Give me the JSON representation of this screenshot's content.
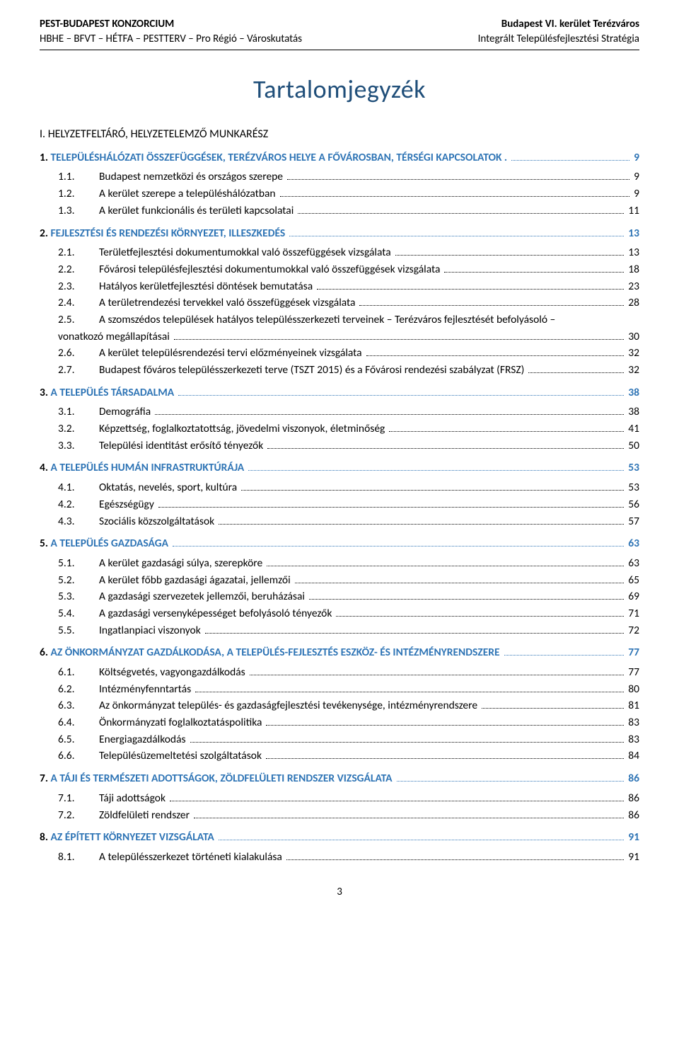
{
  "header": {
    "left_top": "PEST-BUDAPEST KONZORCIUM",
    "right_top": "Budapest VI. kerület Terézváros",
    "left_sub": "HBHE – BFVT – HÉTFA – PESTTERV – Pro Régió – Városkutatás",
    "right_sub": "Integrált Településfejlesztési Stratégia"
  },
  "title": "Tartalomjegyzék",
  "footer_page": "3",
  "toc": [
    {
      "level": "part",
      "label": "I. HELYZETFELTÁRÓ, HELYZETELEMZŐ MUNKARÉSZ"
    },
    {
      "level": "h1",
      "num": "1.",
      "label": "TELEPÜLÉSHÁLÓZATI ÖSSZEFÜGGÉSEK, TERÉZVÁROS HELYE A FŐVÁROSBAN, TÉRSÉGI KAPCSOLATOK .",
      "page": "9"
    },
    {
      "level": "h2",
      "num": "1.1.",
      "label": "Budapest nemzetközi és országos szerepe",
      "page": "9"
    },
    {
      "level": "h2",
      "num": "1.2.",
      "label": "A kerület szerepe a településhálózatban",
      "page": "9"
    },
    {
      "level": "h2",
      "num": "1.3.",
      "label": "A kerület funkcionális és területi kapcsolatai",
      "page": "11"
    },
    {
      "level": "h1",
      "num": "2.",
      "label": "FEJLESZTÉSI ÉS RENDEZÉSI KÖRNYEZET, ILLESZKEDÉS",
      "page": "13"
    },
    {
      "level": "h2",
      "num": "2.1.",
      "label": "Területfejlesztési dokumentumokkal való összefüggések vizsgálata",
      "page": "13"
    },
    {
      "level": "h2",
      "num": "2.2.",
      "label": "Fővárosi településfejlesztési dokumentumokkal való összefüggések vizsgálata",
      "page": "18"
    },
    {
      "level": "h2",
      "num": "2.3.",
      "label": "Hatályos kerületfejlesztési döntések bemutatása",
      "page": "23"
    },
    {
      "level": "h2",
      "num": "2.4.",
      "label": "A területrendezési tervekkel való összefüggések vizsgálata",
      "page": "28"
    },
    {
      "level": "wrap",
      "num": "2.5.",
      "label_line1": "A szomszédos települések hatályos településszerkezeti terveinek – Terézváros fejlesztését befolyásoló –",
      "label_line2": "vonatkozó megállapításai",
      "page": "30"
    },
    {
      "level": "h2",
      "num": "2.6.",
      "label": "A kerület településrendezési tervi előzményeinek vizsgálata",
      "page": "32"
    },
    {
      "level": "h2",
      "num": "2.7.",
      "label": "Budapest főváros településszerkezeti terve (TSZT 2015) és a Fővárosi rendezési szabályzat (FRSZ)",
      "page": "32"
    },
    {
      "level": "h1",
      "num": "3.",
      "label": "A TELEPÜLÉS TÁRSADALMA",
      "page": "38"
    },
    {
      "level": "h2",
      "num": "3.1.",
      "label": "Demográfia",
      "page": "38"
    },
    {
      "level": "h2",
      "num": "3.2.",
      "label": "Képzettség, foglalkoztatottság, jövedelmi viszonyok, életminőség",
      "page": "41"
    },
    {
      "level": "h2",
      "num": "3.3.",
      "label": "Települési identitást erősítő tényezők",
      "page": "50"
    },
    {
      "level": "h1",
      "num": "4.",
      "label": "A TELEPÜLÉS HUMÁN INFRASTRUKTÚRÁJA",
      "page": "53"
    },
    {
      "level": "h2",
      "num": "4.1.",
      "label": "Oktatás, nevelés, sport, kultúra",
      "page": "53"
    },
    {
      "level": "h2",
      "num": "4.2.",
      "label": "Egészségügy",
      "page": "56"
    },
    {
      "level": "h2",
      "num": "4.3.",
      "label": "Szociális közszolgáltatások",
      "page": "57"
    },
    {
      "level": "h1",
      "num": "5.",
      "label": "A TELEPÜLÉS GAZDASÁGA",
      "page": "63"
    },
    {
      "level": "h2",
      "num": "5.1.",
      "label": "A kerület gazdasági súlya, szerepköre",
      "page": "63"
    },
    {
      "level": "h2",
      "num": "5.2.",
      "label": "A kerület főbb gazdasági ágazatai, jellemzői",
      "page": "65"
    },
    {
      "level": "h2",
      "num": "5.3.",
      "label": "A gazdasági szervezetek jellemzői, beruházásai",
      "page": "69"
    },
    {
      "level": "h2",
      "num": "5.4.",
      "label": "A gazdasági versenyképességet befolyásoló tényezők",
      "page": "71"
    },
    {
      "level": "h2",
      "num": "5.5.",
      "label": "Ingatlanpiaci viszonyok",
      "page": "72"
    },
    {
      "level": "h1",
      "num": "6.",
      "label": "AZ ÖNKORMÁNYZAT GAZDÁLKODÁSA, A TELEPÜLÉS-FEJLESZTÉS ESZKÖZ- ÉS INTÉZMÉNYRENDSZERE",
      "page": "77"
    },
    {
      "level": "h2",
      "num": "6.1.",
      "label": "Költségvetés, vagyongazdálkodás",
      "page": "77"
    },
    {
      "level": "h2",
      "num": "6.2.",
      "label": "Intézményfenntartás",
      "page": "80"
    },
    {
      "level": "h2",
      "num": "6.3.",
      "label": "Az önkormányzat település- és gazdaságfejlesztési tevékenysége, intézményrendszere",
      "page": "81"
    },
    {
      "level": "h2",
      "num": "6.4.",
      "label": "Önkormányzati foglalkoztatáspolitika",
      "page": "83"
    },
    {
      "level": "h2",
      "num": "6.5.",
      "label": "Energiagazdálkodás",
      "page": "83"
    },
    {
      "level": "h2",
      "num": "6.6.",
      "label": "Településüzemeltetési szolgáltatások",
      "page": "84"
    },
    {
      "level": "h1",
      "num": "7.",
      "label": "A TÁJI ÉS TERMÉSZETI ADOTTSÁGOK, ZÖLDFELÜLETI RENDSZER VIZSGÁLATA",
      "page": "86"
    },
    {
      "level": "h2",
      "num": "7.1.",
      "label": "Táji adottságok",
      "page": "86"
    },
    {
      "level": "h2",
      "num": "7.2.",
      "label": "Zöldfelületi rendszer",
      "page": "86"
    },
    {
      "level": "h1",
      "num": "8.",
      "label": "AZ ÉPÍTETT KÖRNYEZET VIZSGÁLATA",
      "page": "91"
    },
    {
      "level": "h2",
      "num": "8.1.",
      "label": "A településszerkezet történeti kialakulása",
      "page": "91"
    }
  ]
}
